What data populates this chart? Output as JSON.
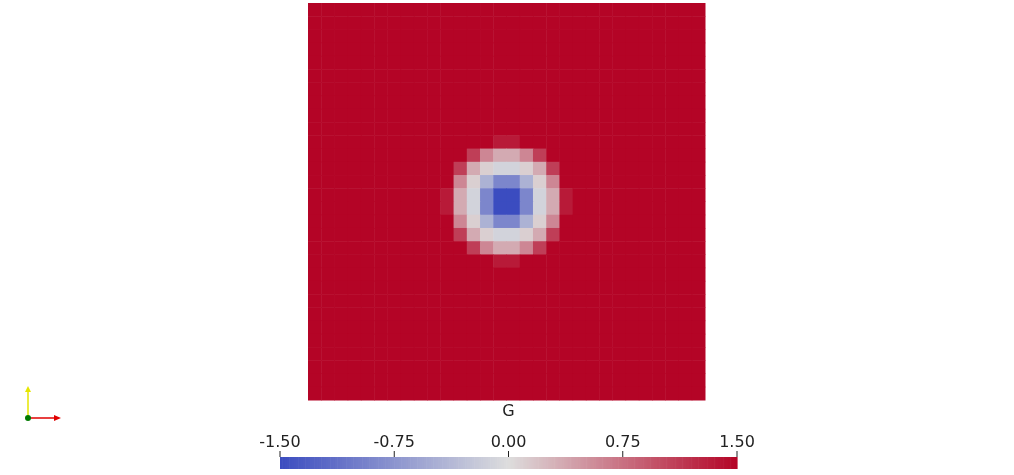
{
  "chart_data": {
    "type": "heatmap",
    "categories": [
      null,
      null,
      null,
      null,
      null,
      null,
      null,
      null,
      null,
      null,
      null,
      null,
      null,
      null,
      null,
      null,
      null,
      null,
      null,
      null,
      null,
      null,
      null,
      null,
      null,
      null,
      null,
      null,
      null,
      null
    ],
    "y_categories": [
      null,
      null,
      null,
      null,
      null,
      null,
      null,
      null,
      null,
      null,
      null,
      null,
      null,
      null,
      null,
      null,
      null,
      null,
      null,
      null,
      null,
      null,
      null,
      null,
      null,
      null,
      null,
      null,
      null,
      null
    ],
    "cells": [
      [
        1.5,
        1.5,
        1.5,
        1.5,
        1.5,
        1.5,
        1.5,
        1.5,
        1.5,
        1.5,
        1.5,
        1.5,
        1.5,
        1.5,
        1.5,
        1.5,
        1.5,
        1.5,
        1.5,
        1.5,
        1.5,
        1.5,
        1.5,
        1.5,
        1.5,
        1.5,
        1.5,
        1.5,
        1.5,
        1.5
      ],
      [
        1.5,
        1.5,
        1.5,
        1.5,
        1.5,
        1.5,
        1.5,
        1.5,
        1.5,
        1.5,
        1.5,
        1.5,
        1.5,
        1.5,
        1.5,
        1.5,
        1.5,
        1.5,
        1.5,
        1.5,
        1.5,
        1.5,
        1.5,
        1.5,
        1.5,
        1.5,
        1.5,
        1.5,
        1.5,
        1.5
      ],
      [
        1.5,
        1.5,
        1.5,
        1.5,
        1.5,
        1.5,
        1.5,
        1.5,
        1.5,
        1.5,
        1.5,
        1.5,
        1.5,
        1.5,
        1.5,
        1.5,
        1.5,
        1.5,
        1.5,
        1.5,
        1.5,
        1.5,
        1.5,
        1.5,
        1.5,
        1.5,
        1.5,
        1.5,
        1.5,
        1.5
      ],
      [
        1.5,
        1.5,
        1.5,
        1.5,
        1.5,
        1.5,
        1.5,
        1.5,
        1.5,
        1.5,
        1.5,
        1.5,
        1.5,
        1.5,
        1.5,
        1.5,
        1.5,
        1.5,
        1.5,
        1.5,
        1.5,
        1.5,
        1.5,
        1.5,
        1.5,
        1.5,
        1.5,
        1.5,
        1.5,
        1.5
      ],
      [
        1.5,
        1.5,
        1.5,
        1.5,
        1.5,
        1.5,
        1.5,
        1.5,
        1.5,
        1.5,
        1.5,
        1.5,
        1.5,
        1.5,
        1.5,
        1.5,
        1.5,
        1.5,
        1.5,
        1.5,
        1.5,
        1.5,
        1.5,
        1.5,
        1.5,
        1.5,
        1.5,
        1.5,
        1.5,
        1.5
      ],
      [
        1.5,
        1.5,
        1.5,
        1.5,
        1.5,
        1.5,
        1.5,
        1.5,
        1.5,
        1.5,
        1.5,
        1.5,
        1.5,
        1.5,
        1.5,
        1.5,
        1.5,
        1.5,
        1.5,
        1.5,
        1.5,
        1.5,
        1.5,
        1.5,
        1.5,
        1.5,
        1.5,
        1.5,
        1.5,
        1.5
      ],
      [
        1.5,
        1.5,
        1.5,
        1.5,
        1.5,
        1.5,
        1.5,
        1.5,
        1.5,
        1.5,
        1.5,
        1.5,
        1.5,
        1.5,
        1.5,
        1.5,
        1.5,
        1.5,
        1.5,
        1.5,
        1.5,
        1.5,
        1.5,
        1.5,
        1.5,
        1.5,
        1.5,
        1.5,
        1.5,
        1.5
      ],
      [
        1.5,
        1.5,
        1.5,
        1.5,
        1.5,
        1.5,
        1.5,
        1.5,
        1.5,
        1.5,
        1.5,
        1.5,
        1.5,
        1.5,
        1.5,
        1.5,
        1.5,
        1.5,
        1.5,
        1.5,
        1.5,
        1.5,
        1.5,
        1.5,
        1.5,
        1.5,
        1.5,
        1.5,
        1.5,
        1.5
      ],
      [
        1.5,
        1.5,
        1.5,
        1.5,
        1.5,
        1.5,
        1.5,
        1.5,
        1.5,
        1.5,
        1.5,
        1.5,
        1.5,
        1.5,
        1.5,
        1.5,
        1.5,
        1.5,
        1.5,
        1.5,
        1.5,
        1.5,
        1.5,
        1.5,
        1.5,
        1.5,
        1.5,
        1.5,
        1.5,
        1.5
      ],
      [
        1.5,
        1.5,
        1.5,
        1.5,
        1.5,
        1.5,
        1.5,
        1.5,
        1.5,
        1.5,
        1.5,
        1.5,
        1.5,
        1.5,
        1.5,
        1.5,
        1.5,
        1.5,
        1.5,
        1.5,
        1.5,
        1.5,
        1.5,
        1.5,
        1.5,
        1.5,
        1.5,
        1.5,
        1.5,
        1.5
      ],
      [
        1.5,
        1.5,
        1.5,
        1.5,
        1.5,
        1.5,
        1.5,
        1.5,
        1.5,
        1.5,
        1.5,
        1.5,
        1.5,
        1.5,
        1.35,
        1.35,
        1.5,
        1.5,
        1.5,
        1.5,
        1.5,
        1.5,
        1.5,
        1.5,
        1.5,
        1.5,
        1.5,
        1.5,
        1.5,
        1.5
      ],
      [
        1.5,
        1.5,
        1.5,
        1.5,
        1.5,
        1.5,
        1.5,
        1.5,
        1.5,
        1.5,
        1.5,
        1.5,
        1.1,
        0.6,
        0.35,
        0.35,
        0.6,
        1.1,
        1.5,
        1.5,
        1.5,
        1.5,
        1.5,
        1.5,
        1.5,
        1.5,
        1.5,
        1.5,
        1.5,
        1.5
      ],
      [
        1.5,
        1.5,
        1.5,
        1.5,
        1.5,
        1.5,
        1.5,
        1.5,
        1.5,
        1.5,
        1.5,
        1.1,
        0.35,
        0.1,
        -0.1,
        -0.1,
        0.1,
        0.35,
        1.1,
        1.5,
        1.5,
        1.5,
        1.5,
        1.5,
        1.5,
        1.5,
        1.5,
        1.5,
        1.5,
        1.5
      ],
      [
        1.5,
        1.5,
        1.5,
        1.5,
        1.5,
        1.5,
        1.5,
        1.5,
        1.5,
        1.5,
        1.5,
        0.6,
        0.1,
        -0.45,
        -0.9,
        -0.9,
        -0.45,
        0.1,
        0.6,
        1.5,
        1.5,
        1.5,
        1.5,
        1.5,
        1.5,
        1.5,
        1.5,
        1.5,
        1.5,
        1.5
      ],
      [
        1.5,
        1.5,
        1.5,
        1.5,
        1.5,
        1.5,
        1.5,
        1.5,
        1.5,
        1.5,
        1.35,
        0.35,
        -0.1,
        -0.9,
        -1.5,
        -1.5,
        -0.9,
        -0.1,
        0.35,
        1.35,
        1.5,
        1.5,
        1.5,
        1.5,
        1.5,
        1.5,
        1.5,
        1.5,
        1.5,
        1.5
      ],
      [
        1.5,
        1.5,
        1.5,
        1.5,
        1.5,
        1.5,
        1.5,
        1.5,
        1.5,
        1.5,
        1.35,
        0.35,
        -0.1,
        -0.9,
        -1.5,
        -1.5,
        -0.9,
        -0.1,
        0.35,
        1.35,
        1.5,
        1.5,
        1.5,
        1.5,
        1.5,
        1.5,
        1.5,
        1.5,
        1.5,
        1.5
      ],
      [
        1.5,
        1.5,
        1.5,
        1.5,
        1.5,
        1.5,
        1.5,
        1.5,
        1.5,
        1.5,
        1.5,
        0.6,
        0.1,
        -0.45,
        -0.9,
        -0.9,
        -0.45,
        0.1,
        0.6,
        1.5,
        1.5,
        1.5,
        1.5,
        1.5,
        1.5,
        1.5,
        1.5,
        1.5,
        1.5,
        1.5
      ],
      [
        1.5,
        1.5,
        1.5,
        1.5,
        1.5,
        1.5,
        1.5,
        1.5,
        1.5,
        1.5,
        1.5,
        1.1,
        0.35,
        0.1,
        -0.1,
        -0.1,
        0.1,
        0.35,
        1.1,
        1.5,
        1.5,
        1.5,
        1.5,
        1.5,
        1.5,
        1.5,
        1.5,
        1.5,
        1.5,
        1.5
      ],
      [
        1.5,
        1.5,
        1.5,
        1.5,
        1.5,
        1.5,
        1.5,
        1.5,
        1.5,
        1.5,
        1.5,
        1.5,
        1.1,
        0.6,
        0.35,
        0.35,
        0.6,
        1.1,
        1.5,
        1.5,
        1.5,
        1.5,
        1.5,
        1.5,
        1.5,
        1.5,
        1.5,
        1.5,
        1.5,
        1.5
      ],
      [
        1.5,
        1.5,
        1.5,
        1.5,
        1.5,
        1.5,
        1.5,
        1.5,
        1.5,
        1.5,
        1.5,
        1.5,
        1.5,
        1.5,
        1.35,
        1.35,
        1.5,
        1.5,
        1.5,
        1.5,
        1.5,
        1.5,
        1.5,
        1.5,
        1.5,
        1.5,
        1.5,
        1.5,
        1.5,
        1.5
      ],
      [
        1.5,
        1.5,
        1.5,
        1.5,
        1.5,
        1.5,
        1.5,
        1.5,
        1.5,
        1.5,
        1.5,
        1.5,
        1.5,
        1.5,
        1.5,
        1.5,
        1.5,
        1.5,
        1.5,
        1.5,
        1.5,
        1.5,
        1.5,
        1.5,
        1.5,
        1.5,
        1.5,
        1.5,
        1.5,
        1.5
      ],
      [
        1.5,
        1.5,
        1.5,
        1.5,
        1.5,
        1.5,
        1.5,
        1.5,
        1.5,
        1.5,
        1.5,
        1.5,
        1.5,
        1.5,
        1.5,
        1.5,
        1.5,
        1.5,
        1.5,
        1.5,
        1.5,
        1.5,
        1.5,
        1.5,
        1.5,
        1.5,
        1.5,
        1.5,
        1.5,
        1.5
      ],
      [
        1.5,
        1.5,
        1.5,
        1.5,
        1.5,
        1.5,
        1.5,
        1.5,
        1.5,
        1.5,
        1.5,
        1.5,
        1.5,
        1.5,
        1.5,
        1.5,
        1.5,
        1.5,
        1.5,
        1.5,
        1.5,
        1.5,
        1.5,
        1.5,
        1.5,
        1.5,
        1.5,
        1.5,
        1.5,
        1.5
      ],
      [
        1.5,
        1.5,
        1.5,
        1.5,
        1.5,
        1.5,
        1.5,
        1.5,
        1.5,
        1.5,
        1.5,
        1.5,
        1.5,
        1.5,
        1.5,
        1.5,
        1.5,
        1.5,
        1.5,
        1.5,
        1.5,
        1.5,
        1.5,
        1.5,
        1.5,
        1.5,
        1.5,
        1.5,
        1.5,
        1.5
      ],
      [
        1.5,
        1.5,
        1.5,
        1.5,
        1.5,
        1.5,
        1.5,
        1.5,
        1.5,
        1.5,
        1.5,
        1.5,
        1.5,
        1.5,
        1.5,
        1.5,
        1.5,
        1.5,
        1.5,
        1.5,
        1.5,
        1.5,
        1.5,
        1.5,
        1.5,
        1.5,
        1.5,
        1.5,
        1.5,
        1.5
      ],
      [
        1.5,
        1.5,
        1.5,
        1.5,
        1.5,
        1.5,
        1.5,
        1.5,
        1.5,
        1.5,
        1.5,
        1.5,
        1.5,
        1.5,
        1.5,
        1.5,
        1.5,
        1.5,
        1.5,
        1.5,
        1.5,
        1.5,
        1.5,
        1.5,
        1.5,
        1.5,
        1.5,
        1.5,
        1.5,
        1.5
      ],
      [
        1.5,
        1.5,
        1.5,
        1.5,
        1.5,
        1.5,
        1.5,
        1.5,
        1.5,
        1.5,
        1.5,
        1.5,
        1.5,
        1.5,
        1.5,
        1.5,
        1.5,
        1.5,
        1.5,
        1.5,
        1.5,
        1.5,
        1.5,
        1.5,
        1.5,
        1.5,
        1.5,
        1.5,
        1.5,
        1.5
      ],
      [
        1.5,
        1.5,
        1.5,
        1.5,
        1.5,
        1.5,
        1.5,
        1.5,
        1.5,
        1.5,
        1.5,
        1.5,
        1.5,
        1.5,
        1.5,
        1.5,
        1.5,
        1.5,
        1.5,
        1.5,
        1.5,
        1.5,
        1.5,
        1.5,
        1.5,
        1.5,
        1.5,
        1.5,
        1.5,
        1.5
      ],
      [
        1.5,
        1.5,
        1.5,
        1.5,
        1.5,
        1.5,
        1.5,
        1.5,
        1.5,
        1.5,
        1.5,
        1.5,
        1.5,
        1.5,
        1.5,
        1.5,
        1.5,
        1.5,
        1.5,
        1.5,
        1.5,
        1.5,
        1.5,
        1.5,
        1.5,
        1.5,
        1.5,
        1.5,
        1.5,
        1.5
      ],
      [
        1.5,
        1.5,
        1.5,
        1.5,
        1.5,
        1.5,
        1.5,
        1.5,
        1.5,
        1.5,
        1.5,
        1.5,
        1.5,
        1.5,
        1.5,
        1.5,
        1.5,
        1.5,
        1.5,
        1.5,
        1.5,
        1.5,
        1.5,
        1.5,
        1.5,
        1.5,
        1.5,
        1.5,
        1.5,
        1.5
      ]
    ],
    "clim": [
      -1.5,
      1.5
    ],
    "cticks": [
      {
        "value": -1.5,
        "label": "-1.50"
      },
      {
        "value": -0.75,
        "label": "-0.75"
      },
      {
        "value": 0,
        "label": "0.00"
      },
      {
        "value": 0.75,
        "label": "0.75"
      },
      {
        "value": 1.5,
        "label": "1.50"
      }
    ],
    "clabel": "G"
  }
}
